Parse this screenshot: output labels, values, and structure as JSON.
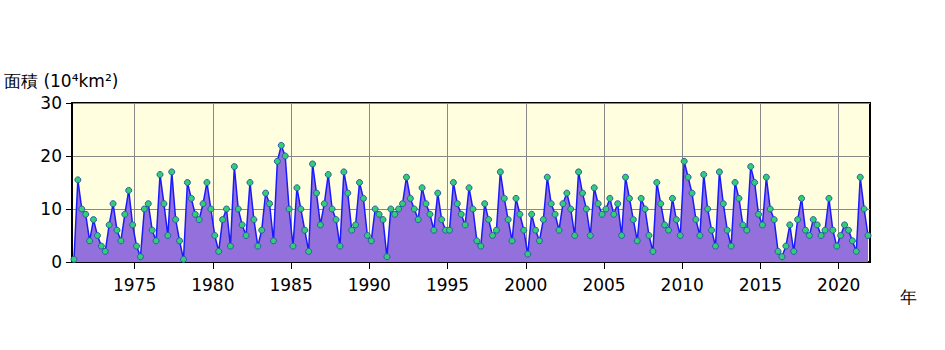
{
  "chart_data": {
    "type": "area",
    "y_label": "面積 (10⁴km²)",
    "x_label": "年",
    "color": "#9370db",
    "marker": "circle",
    "grid": true,
    "xlim": [
      1971,
      2022
    ],
    "xticks": [
      1975,
      1980,
      1985,
      1990,
      1995,
      2000,
      2005,
      2010,
      2015,
      2020
    ],
    "ylim": [
      0,
      30
    ],
    "yticks": [
      0,
      10,
      20,
      30
    ],
    "x": [
      1971.125,
      1971.375,
      1971.625,
      1971.875,
      1972.125,
      1972.375,
      1972.625,
      1972.875,
      1973.125,
      1973.375,
      1973.625,
      1973.875,
      1974.125,
      1974.375,
      1974.625,
      1974.875,
      1975.125,
      1975.375,
      1975.625,
      1975.875,
      1976.125,
      1976.375,
      1976.625,
      1976.875,
      1977.125,
      1977.375,
      1977.625,
      1977.875,
      1978.125,
      1978.375,
      1978.625,
      1978.875,
      1979.125,
      1979.375,
      1979.625,
      1979.875,
      1980.125,
      1980.375,
      1980.625,
      1980.875,
      1981.125,
      1981.375,
      1981.625,
      1981.875,
      1982.125,
      1982.375,
      1982.625,
      1982.875,
      1983.125,
      1983.375,
      1983.625,
      1983.875,
      1984.125,
      1984.375,
      1984.625,
      1984.875,
      1985.125,
      1985.375,
      1985.625,
      1985.875,
      1986.125,
      1986.375,
      1986.625,
      1986.875,
      1987.125,
      1987.375,
      1987.625,
      1987.875,
      1988.125,
      1988.375,
      1988.625,
      1988.875,
      1989.125,
      1989.375,
      1989.625,
      1989.875,
      1990.125,
      1990.375,
      1990.625,
      1990.875,
      1991.125,
      1991.375,
      1991.625,
      1991.875,
      1992.125,
      1992.375,
      1992.625,
      1992.875,
      1993.125,
      1993.375,
      1993.625,
      1993.875,
      1994.125,
      1994.375,
      1994.625,
      1994.875,
      1995.125,
      1995.375,
      1995.625,
      1995.875,
      1996.125,
      1996.375,
      1996.625,
      1996.875,
      1997.125,
      1997.375,
      1997.625,
      1997.875,
      1998.125,
      1998.375,
      1998.625,
      1998.875,
      1999.125,
      1999.375,
      1999.625,
      1999.875,
      2000.125,
      2000.375,
      2000.625,
      2000.875,
      2001.125,
      2001.375,
      2001.625,
      2001.875,
      2002.125,
      2002.375,
      2002.625,
      2002.875,
      2003.125,
      2003.375,
      2003.625,
      2003.875,
      2004.125,
      2004.375,
      2004.625,
      2004.875,
      2005.125,
      2005.375,
      2005.625,
      2005.875,
      2006.125,
      2006.375,
      2006.625,
      2006.875,
      2007.125,
      2007.375,
      2007.625,
      2007.875,
      2008.125,
      2008.375,
      2008.625,
      2008.875,
      2009.125,
      2009.375,
      2009.625,
      2009.875,
      2010.125,
      2010.375,
      2010.625,
      2010.875,
      2011.125,
      2011.375,
      2011.625,
      2011.875,
      2012.125,
      2012.375,
      2012.625,
      2012.875,
      2013.125,
      2013.375,
      2013.625,
      2013.875,
      2014.125,
      2014.375,
      2014.625,
      2014.875,
      2015.125,
      2015.375,
      2015.625,
      2015.875,
      2016.125,
      2016.375,
      2016.625,
      2016.875,
      2017.125,
      2017.375,
      2017.625,
      2017.875,
      2018.125,
      2018.375,
      2018.625,
      2018.875,
      2019.125,
      2019.375,
      2019.625,
      2019.875,
      2020.125,
      2020.375,
      2020.625,
      2020.875,
      2021.125,
      2021.375,
      2021.625,
      2021.875
    ],
    "values": [
      0.5,
      15.5,
      10,
      9,
      4,
      8,
      5,
      3,
      2,
      7,
      11,
      6,
      4,
      9,
      13.5,
      7,
      3,
      1,
      10,
      11,
      6,
      4,
      16.5,
      11,
      5,
      17,
      8,
      4,
      0.5,
      15,
      12,
      9,
      8,
      11,
      15,
      10,
      5,
      2,
      8,
      10,
      3,
      18,
      10,
      7,
      5,
      15,
      8,
      3,
      6,
      13,
      11,
      4,
      19,
      22,
      20,
      10,
      3,
      14,
      10,
      6,
      2,
      18.5,
      13,
      7,
      11,
      16.5,
      10,
      8,
      3,
      17,
      13,
      6,
      7,
      15,
      12,
      5,
      4,
      10,
      9,
      8,
      1,
      10,
      9,
      10,
      11,
      16,
      12,
      10,
      8,
      14,
      11,
      9,
      6,
      13,
      8,
      6,
      6,
      15,
      11,
      9,
      7,
      14,
      10,
      4,
      3,
      11,
      8,
      5,
      6,
      17,
      12,
      8,
      4,
      12,
      9,
      6,
      1.5,
      9,
      6,
      4,
      8,
      16,
      11,
      9,
      6,
      11,
      13,
      10,
      5,
      17,
      13,
      10,
      5,
      14,
      11,
      9,
      10,
      12,
      9,
      11,
      5,
      16,
      12,
      8,
      4,
      12,
      10,
      5,
      2,
      15,
      11,
      7,
      6,
      12,
      8,
      5,
      19,
      16,
      13,
      8,
      5,
      16.5,
      10,
      6,
      3,
      17,
      11,
      6,
      3,
      15,
      12,
      7,
      6,
      18,
      15,
      9,
      7,
      16,
      10,
      8,
      2,
      1,
      3,
      7,
      2,
      8,
      12,
      6,
      5,
      8,
      7,
      5,
      6,
      12,
      6,
      3,
      5,
      7,
      6,
      4,
      2,
      16,
      10,
      5
    ]
  }
}
